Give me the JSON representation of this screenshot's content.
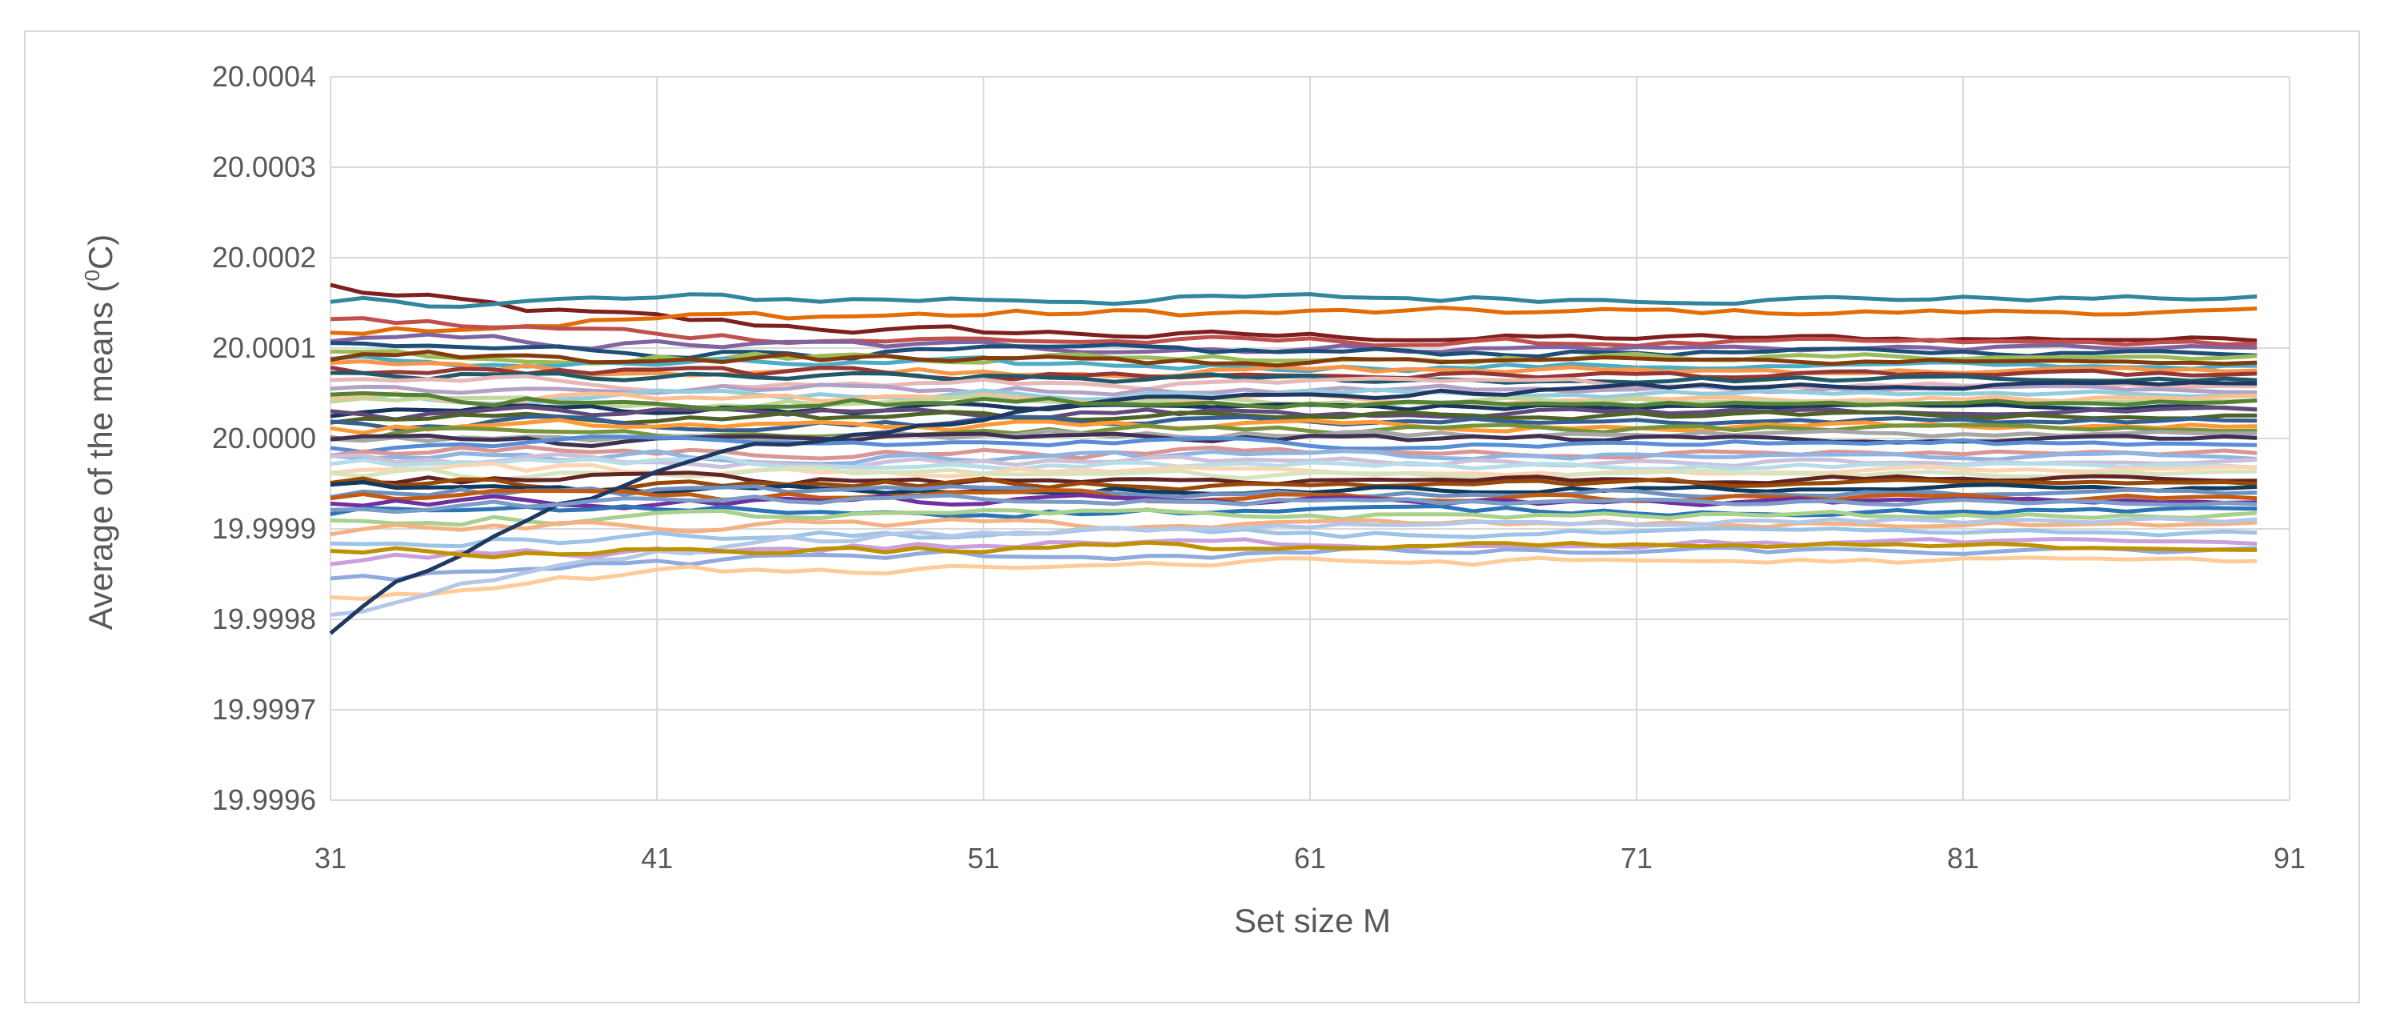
{
  "chart_data": {
    "type": "line",
    "title": "",
    "xlabel": "Set size M",
    "ylabel": "Average of the means (",
    "ylabel_sup": "0",
    "ylabel_tail": "C)",
    "xlim": [
      31,
      91
    ],
    "ylim": [
      19.9996,
      20.0004
    ],
    "x_ticks": [
      31,
      41,
      51,
      61,
      71,
      81,
      91
    ],
    "x_tick_labels": [
      "31",
      "41",
      "51",
      "61",
      "71",
      "81",
      "91"
    ],
    "y_ticks": [
      19.9996,
      19.9997,
      19.9998,
      19.9999,
      20.0,
      20.0001,
      20.0002,
      20.0003,
      20.0004
    ],
    "y_tick_labels": [
      "19.9996",
      "19.9997",
      "19.9998",
      "19.9999",
      "20.0000",
      "20.0001",
      "20.0002",
      "20.0003",
      "20.0004"
    ],
    "grid": "vertical and horizontal",
    "legend": "none",
    "x_range": [
      31,
      90
    ],
    "series_start_values": [
      20.000168,
      20.00012,
      20.00015,
      20.000135,
      20.00011,
      20.0001,
      20.000095,
      20.000085,
      20.00008,
      20.000075,
      20.000068,
      20.00006,
      20.000055,
      20.000048,
      20.00004,
      20.000035,
      20.00003,
      20.000025,
      20.00002,
      20.000015,
      20.00001,
      20.000005,
      20.0,
      19.999995,
      19.99999,
      19.999985,
      19.99998,
      19.999975,
      19.99997,
      19.999965,
      19.99996,
      19.999955,
      19.99995,
      19.999945,
      19.99994,
      19.999935,
      19.99993,
      19.99992,
      19.99991,
      19.9999,
      19.99988,
      19.99986,
      19.99984,
      19.99982,
      19.9998,
      19.99978,
      20.00009,
      20.000045,
      19.999925,
      19.99987
    ],
    "series_end_values": [
      20.00011,
      20.00014,
      20.000155,
      20.000105,
      20.0001,
      20.000095,
      20.00009,
      20.00008,
      20.000075,
      20.00007,
      20.000065,
      20.00006,
      20.000055,
      20.00005,
      20.000045,
      20.00004,
      20.000035,
      20.00003,
      20.000025,
      20.00002,
      20.000015,
      20.00001,
      20.000005,
      20.0,
      19.999995,
      19.999985,
      19.99998,
      19.999975,
      19.99997,
      19.999965,
      19.99996,
      19.999955,
      19.99995,
      19.999945,
      19.99994,
      19.999935,
      19.99993,
      19.99992,
      19.999915,
      19.999905,
      19.999895,
      19.999885,
      19.999875,
      19.999865,
      19.99991,
      20.00006,
      20.000085,
      20.00004,
      19.99993,
      19.99988
    ],
    "series_colors": [
      "#7f1f1f",
      "#e36c09",
      "#31859c",
      "#c0504d",
      "#8064a2",
      "#1f4e79",
      "#9bbb59",
      "#4bacc6",
      "#f79646",
      "#953735",
      "#215968",
      "#e6b9b8",
      "#b3a2c7",
      "#93cddd",
      "#fac090",
      "#c3d69b",
      "#17375e",
      "#604a7b",
      "#4f6228",
      "#376092",
      "#ff9933",
      "#77933c",
      "#a6a6a6",
      "#3f3151",
      "#558ed5",
      "#d99694",
      "#8eb4e3",
      "#ccc1da",
      "#b7dee8",
      "#fcd5b5",
      "#d7e4bd",
      "#632523",
      "#984807",
      "#0e3b5e",
      "#6f8fbe",
      "#c55a11",
      "#7030a0",
      "#2e75b6",
      "#a9d18e",
      "#f4b183",
      "#9dc3e6",
      "#c9a0dc",
      "#8faadc",
      "#ffcc99",
      "#b4c7e7",
      "#1f3864",
      "#843c0c",
      "#548235",
      "#7a9cc6",
      "#bf9000"
    ]
  }
}
